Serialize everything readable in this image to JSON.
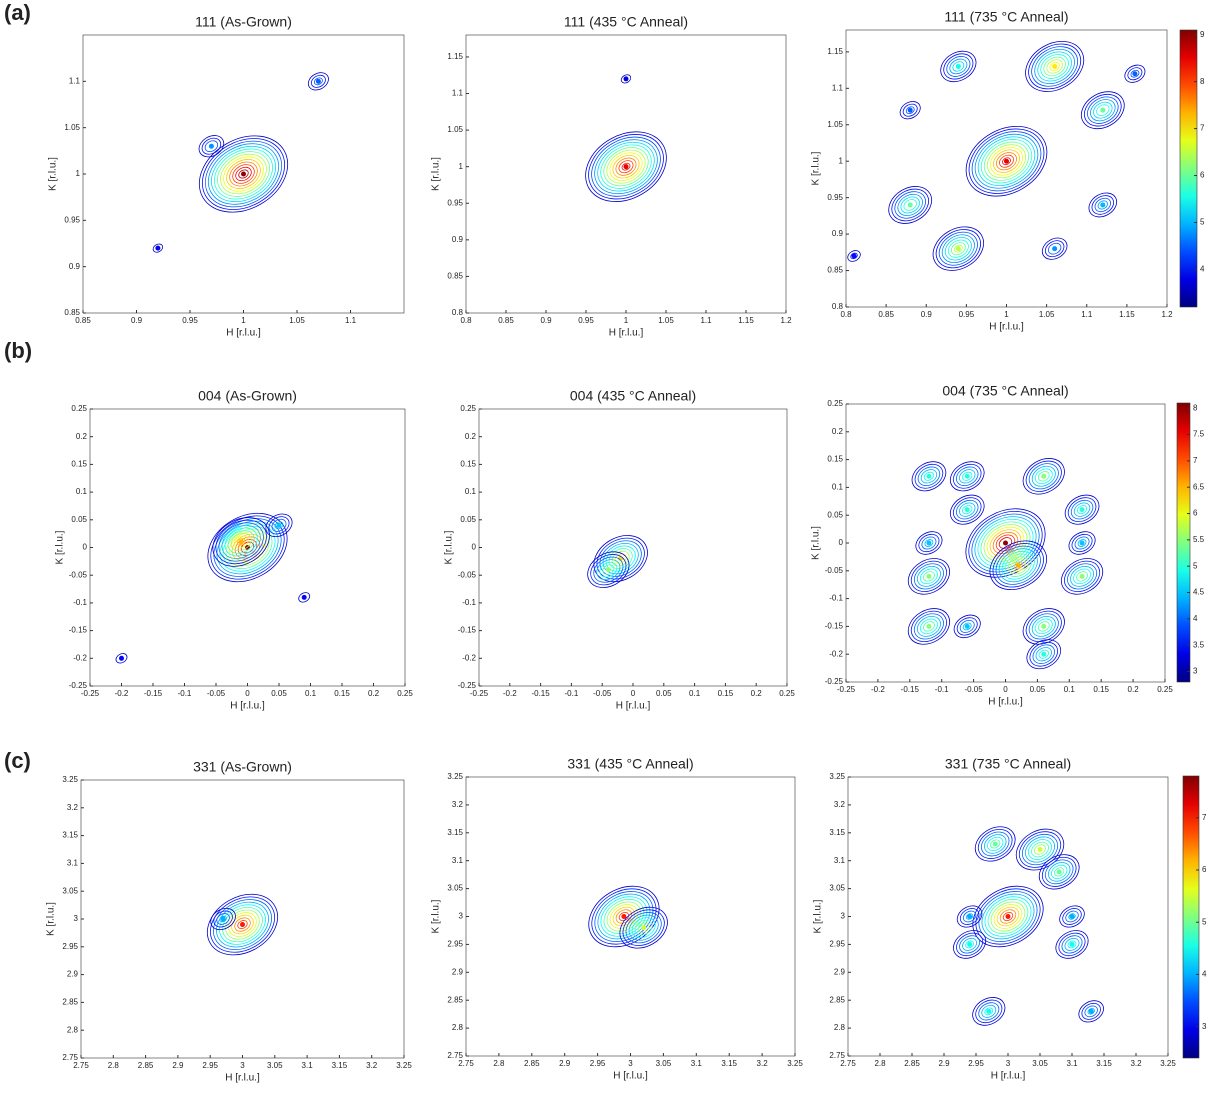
{
  "panel_labels": [
    "(a)",
    "(b)",
    "(c)"
  ],
  "colorbars": [
    {
      "ylim": [
        3.2,
        9.1
      ],
      "yticks": [
        4,
        5,
        6,
        7,
        8,
        9
      ]
    },
    {
      "ylim": [
        2.8,
        8.1
      ],
      "yticks": [
        3,
        3.5,
        4,
        4.5,
        5,
        5.5,
        6,
        6.5,
        7,
        7.5,
        8
      ]
    },
    {
      "ylim": [
        2.4,
        7.8
      ],
      "yticks": [
        3,
        4,
        5,
        6,
        7
      ]
    }
  ],
  "chart_data": [
    {
      "type": "contour",
      "title": "111 (As-Grown)",
      "xlabel": "H [r.l.u.]",
      "ylabel": "K [r.l.u.]",
      "xlim": [
        0.85,
        1.15
      ],
      "ylim": [
        0.85,
        1.15
      ],
      "xticks": [
        0.85,
        0.9,
        0.95,
        1,
        1.05,
        1.1
      ],
      "yticks": [
        0.85,
        0.9,
        0.95,
        1,
        1.05,
        1.1
      ],
      "x": [
        1,
        0.92,
        1.07,
        0.97
      ],
      "y": [
        1,
        0.92,
        1.1,
        1.03
      ],
      "values": [
        9,
        3.8,
        4.5,
        4.8
      ]
    },
    {
      "type": "contour",
      "title": "111 (435 °C Anneal)",
      "xlabel": "H [r.l.u.]",
      "ylabel": "K [r.l.u.]",
      "xlim": [
        0.8,
        1.2
      ],
      "ylim": [
        0.8,
        1.18
      ],
      "xticks": [
        0.8,
        0.85,
        0.9,
        0.95,
        1,
        1.05,
        1.1,
        1.15,
        1.2
      ],
      "yticks": [
        0.8,
        0.85,
        0.9,
        0.95,
        1,
        1.05,
        1.1,
        1.15
      ],
      "x": [
        1,
        1.0
      ],
      "y": [
        1,
        1.12
      ],
      "values": [
        8.5,
        3.8
      ]
    },
    {
      "type": "contour",
      "title": "111 (735 °C Anneal)",
      "xlabel": "H [r.l.u.]",
      "ylabel": "K [r.l.u.]",
      "xlim": [
        0.8,
        1.2
      ],
      "ylim": [
        0.8,
        1.18
      ],
      "xticks": [
        0.8,
        0.85,
        0.9,
        0.95,
        1,
        1.05,
        1.1,
        1.15,
        1.2
      ],
      "yticks": [
        0.8,
        0.85,
        0.9,
        0.95,
        1,
        1.05,
        1.1,
        1.15
      ],
      "x": [
        1,
        0.94,
        1.06,
        1.12,
        0.88,
        0.88,
        0.94,
        1.06,
        1.12,
        1.16,
        0.81
      ],
      "y": [
        1,
        1.13,
        1.13,
        1.07,
        1.07,
        0.94,
        0.88,
        0.88,
        0.94,
        1.12,
        0.87
      ],
      "values": [
        8.5,
        5.5,
        7,
        6,
        4.5,
        6,
        6.5,
        4.8,
        5,
        4.5,
        4
      ]
    },
    {
      "type": "contour",
      "title": "004 (As-Grown)",
      "xlabel": "H [r.l.u.]",
      "ylabel": "K [r.l.u.]",
      "xlim": [
        -0.25,
        0.25
      ],
      "ylim": [
        -0.25,
        0.25
      ],
      "xticks": [
        -0.25,
        -0.2,
        -0.15,
        -0.1,
        -0.05,
        0,
        0.05,
        0.1,
        0.15,
        0.2,
        0.25
      ],
      "yticks": [
        -0.25,
        -0.2,
        -0.15,
        -0.1,
        -0.05,
        0,
        0.05,
        0.1,
        0.15,
        0.2,
        0.25
      ],
      "x": [
        0,
        -0.01,
        0.09,
        -0.2,
        0.05
      ],
      "y": [
        0,
        0.01,
        -0.09,
        -0.2,
        0.04
      ],
      "values": [
        8,
        6.5,
        3.5,
        3.5,
        4.5
      ]
    },
    {
      "type": "contour",
      "title": "004 (435 °C Anneal)",
      "xlabel": "H [r.l.u.]",
      "ylabel": "K [r.l.u.]",
      "xlim": [
        -0.25,
        0.25
      ],
      "ylim": [
        -0.25,
        0.25
      ],
      "xticks": [
        -0.25,
        -0.2,
        -0.15,
        -0.1,
        -0.05,
        0,
        0.05,
        0.1,
        0.15,
        0.2,
        0.25
      ],
      "yticks": [
        -0.25,
        -0.2,
        -0.15,
        -0.1,
        -0.05,
        0,
        0.05,
        0.1,
        0.15,
        0.2,
        0.25
      ],
      "x": [
        -0.02,
        -0.04
      ],
      "y": [
        -0.02,
        -0.04
      ],
      "values": [
        6.3,
        5.5
      ]
    },
    {
      "type": "contour",
      "title": "004 (735 °C Anneal)",
      "xlabel": "H [r.l.u.]",
      "ylabel": "K [r.l.u.]",
      "xlim": [
        -0.25,
        0.25
      ],
      "ylim": [
        -0.25,
        0.25
      ],
      "xticks": [
        -0.25,
        -0.2,
        -0.15,
        -0.1,
        -0.05,
        0,
        0.05,
        0.1,
        0.15,
        0.2,
        0.25
      ],
      "yticks": [
        -0.25,
        -0.2,
        -0.15,
        -0.1,
        -0.05,
        0,
        0.05,
        0.1,
        0.15,
        0.2,
        0.25
      ],
      "x": [
        0,
        0.02,
        -0.12,
        -0.06,
        0.06,
        0.12,
        -0.12,
        -0.06,
        0.12,
        -0.12,
        -0.06,
        0.06,
        0.06,
        0.12,
        -0.12
      ],
      "y": [
        0,
        -0.04,
        0.12,
        0.12,
        0.12,
        0.06,
        -0.06,
        0.06,
        -0.06,
        -0.15,
        -0.15,
        -0.15,
        -0.2,
        0,
        0
      ],
      "values": [
        8,
        6.5,
        5,
        5,
        5.5,
        5,
        5.5,
        5,
        5.5,
        5.5,
        4.5,
        5.5,
        5,
        4.5,
        4.5
      ]
    },
    {
      "type": "contour",
      "title": "331 (As-Grown)",
      "xlabel": "H [r.l.u.]",
      "ylabel": "K [r.l.u.]",
      "xlim": [
        2.75,
        3.25
      ],
      "ylim": [
        2.75,
        3.25
      ],
      "xticks": [
        2.75,
        2.8,
        2.85,
        2.9,
        2.95,
        3,
        3.05,
        3.1,
        3.15,
        3.2,
        3.25
      ],
      "yticks": [
        2.75,
        2.8,
        2.85,
        2.9,
        2.95,
        3,
        3.05,
        3.1,
        3.15,
        3.2,
        3.25
      ],
      "x": [
        3,
        2.97
      ],
      "y": [
        2.99,
        3.0
      ],
      "values": [
        7,
        4
      ]
    },
    {
      "type": "contour",
      "title": "331 (435 °C Anneal)",
      "xlabel": "H [r.l.u.]",
      "ylabel": "K [r.l.u.]",
      "xlim": [
        2.75,
        3.25
      ],
      "ylim": [
        2.75,
        3.25
      ],
      "xticks": [
        2.75,
        2.8,
        2.85,
        2.9,
        2.95,
        3,
        3.05,
        3.1,
        3.15,
        3.2,
        3.25
      ],
      "yticks": [
        2.75,
        2.8,
        2.85,
        2.9,
        2.95,
        3,
        3.05,
        3.1,
        3.15,
        3.2,
        3.25
      ],
      "x": [
        2.99,
        3.02
      ],
      "y": [
        3,
        2.98
      ],
      "values": [
        7,
        5.5
      ]
    },
    {
      "type": "contour",
      "title": "331 (735 °C Anneal)",
      "xlabel": "H [r.l.u.]",
      "ylabel": "K [r.l.u.]",
      "xlim": [
        2.75,
        3.25
      ],
      "ylim": [
        2.75,
        3.25
      ],
      "xticks": [
        2.75,
        2.8,
        2.85,
        2.9,
        2.95,
        3,
        3.05,
        3.1,
        3.15,
        3.2,
        3.25
      ],
      "yticks": [
        2.75,
        2.8,
        2.85,
        2.9,
        2.95,
        3,
        3.05,
        3.1,
        3.15,
        3.2,
        3.25
      ],
      "x": [
        3,
        2.98,
        3.05,
        3.08,
        2.94,
        3.1,
        3.1,
        2.94,
        2.97,
        3.13
      ],
      "y": [
        3,
        3.13,
        3.12,
        3.08,
        2.95,
        2.95,
        3.0,
        3.0,
        2.83,
        2.83
      ],
      "values": [
        7,
        5,
        5.5,
        5,
        4.5,
        4.5,
        4,
        4,
        4.5,
        4
      ]
    }
  ]
}
